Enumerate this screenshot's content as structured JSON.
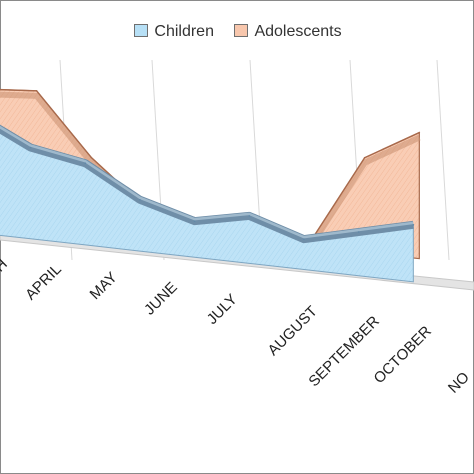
{
  "chart_data": {
    "type": "area",
    "view": "3d-perspective",
    "categories": [
      "MARCH",
      "APRIL",
      "MAY",
      "JUNE",
      "JULY",
      "AUGUST",
      "SEPTEMBER",
      "OCTOBER",
      "NOVEMBER"
    ],
    "visible_tick_labels": [
      "H",
      "APRIL",
      "MAY",
      "JUNE",
      "JULY",
      "AUGUST",
      "SEPTEMBER",
      "OCTOBER",
      "NO"
    ],
    "series": [
      {
        "name": "Children",
        "values": [
          62,
          48,
          43,
          27,
          19,
          25,
          16,
          23,
          30
        ],
        "color": "#b7e0f6",
        "edge_color": "#5e88a8"
      },
      {
        "name": "Adolescents",
        "values": [
          70,
          72,
          38,
          13,
          10,
          7,
          3,
          53,
          70
        ],
        "color": "#f8c7ad",
        "edge_color": "#a86a4c"
      }
    ],
    "grid": true,
    "legend_position": "top"
  }
}
